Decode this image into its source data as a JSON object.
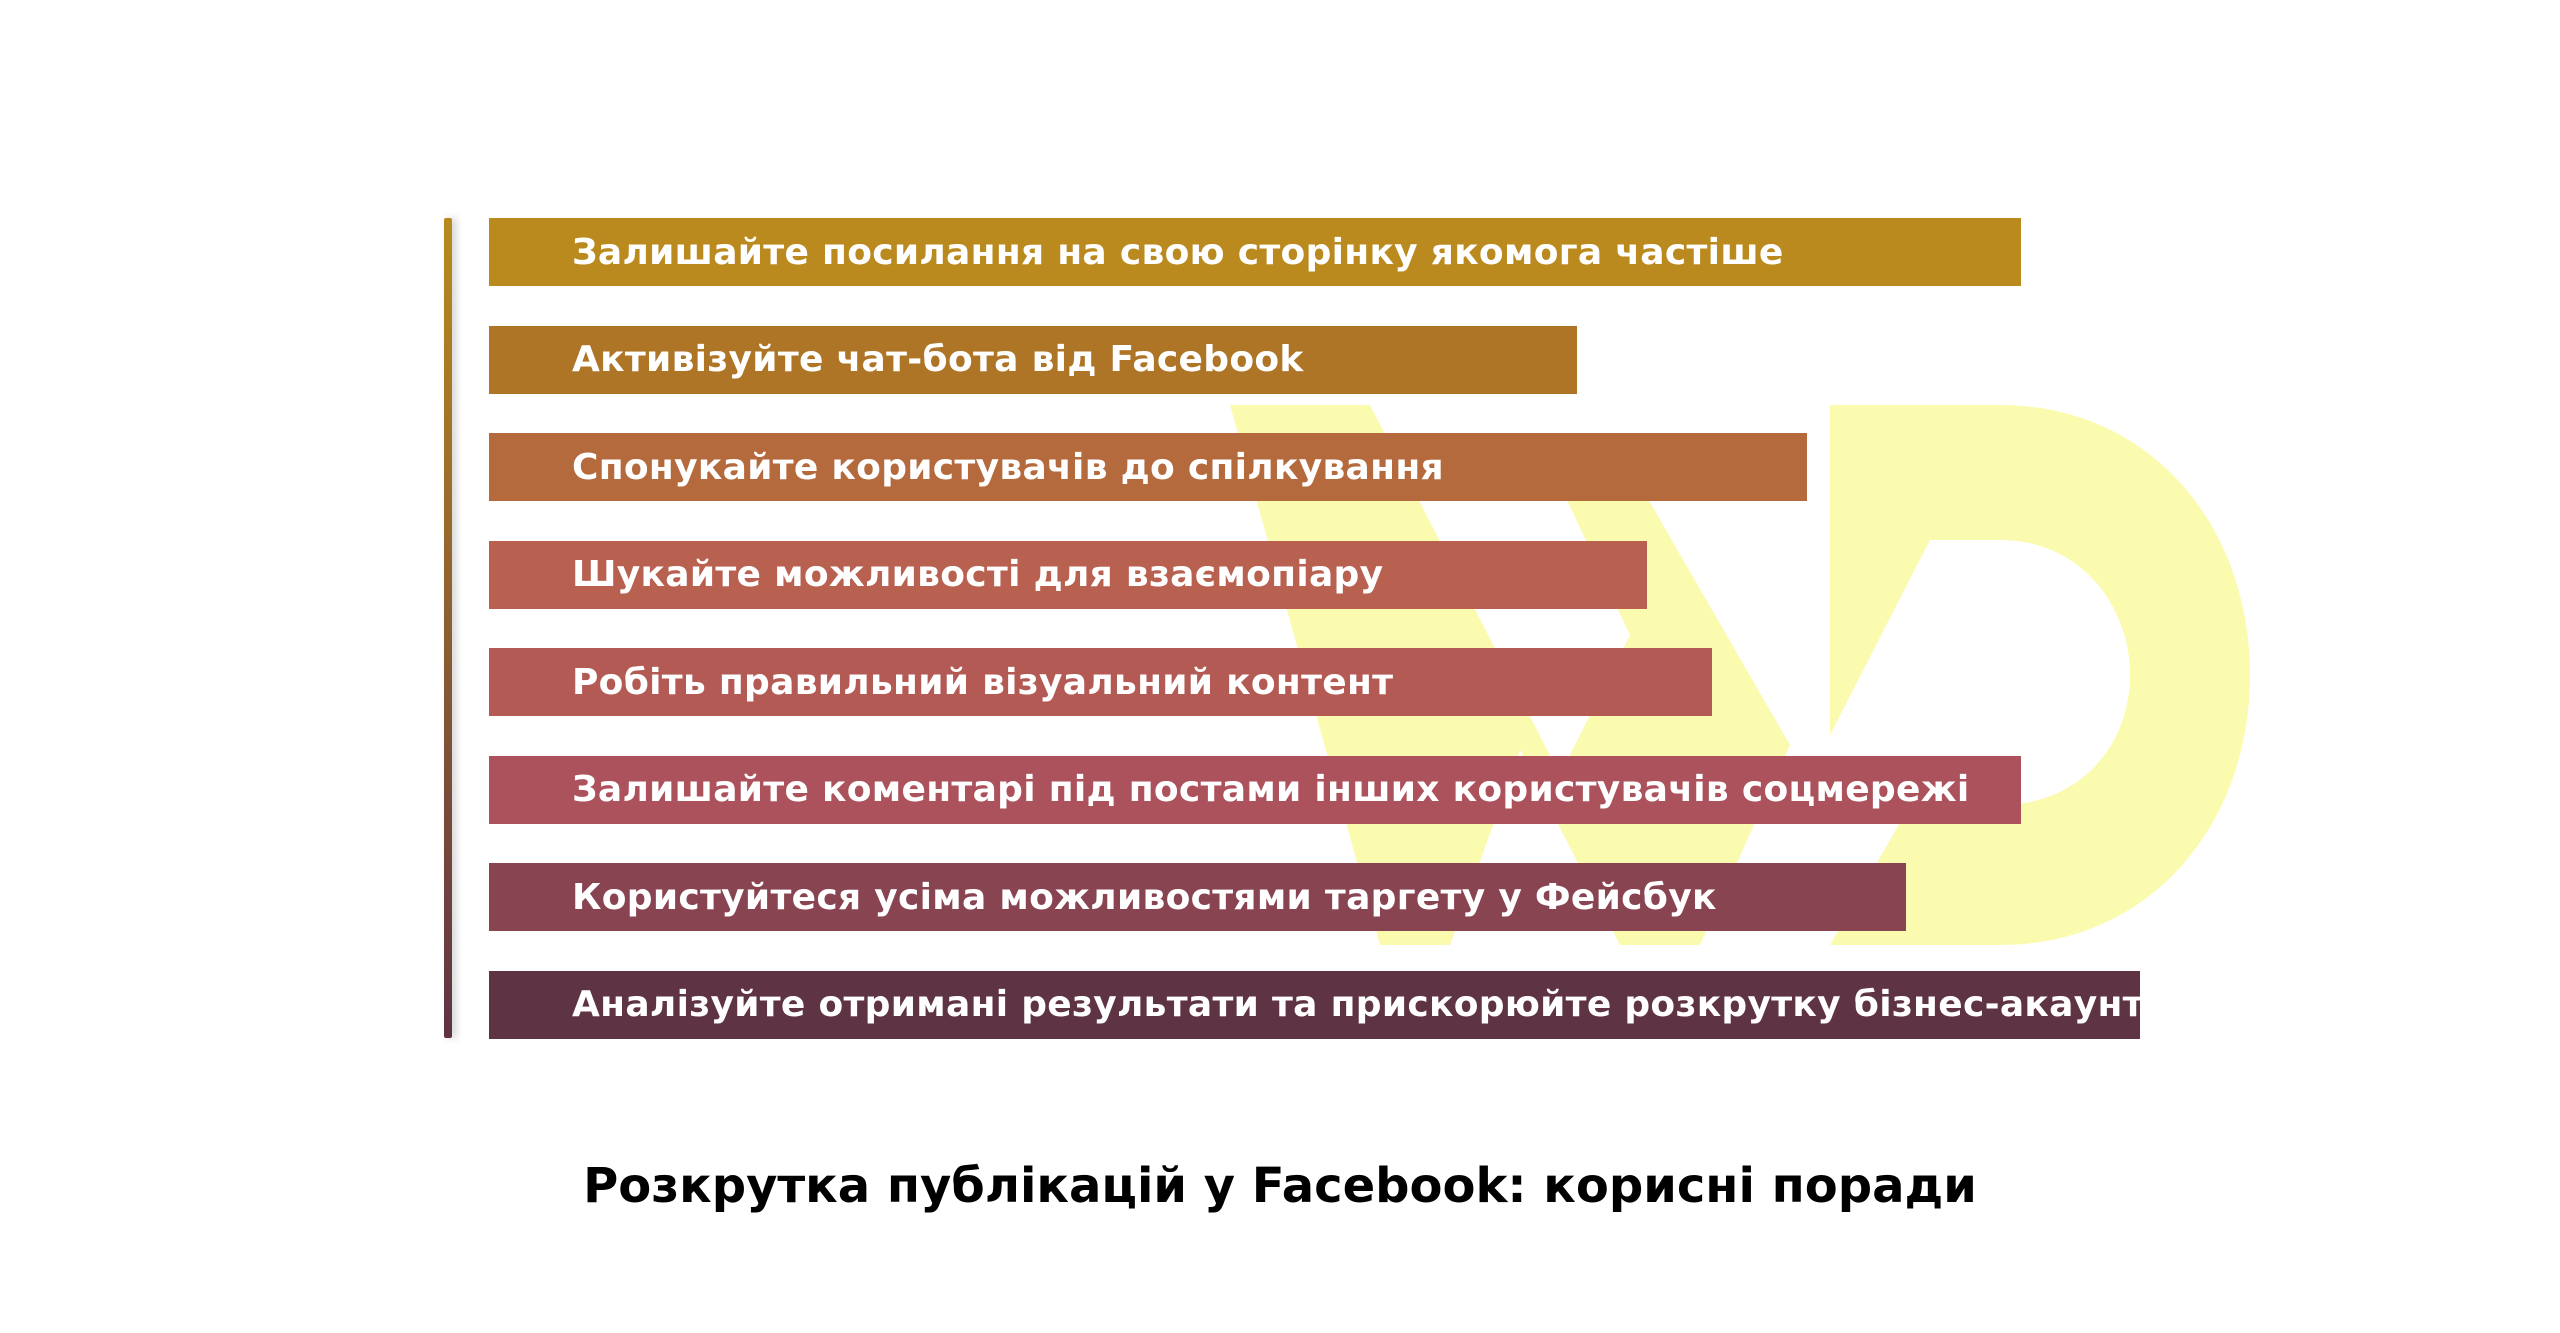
{
  "colors": {
    "timeline_top": "#b98a1f",
    "timeline_bottom": "#5e3344",
    "watermark": "#fbfbb0"
  },
  "tips": [
    {
      "label": "Залишайте посилання на свою сторінку якомога частіше",
      "length_pct": 100,
      "color": "#bb8a1f"
    },
    {
      "label": "Активізуйте чат-бота від Facebook",
      "length_pct": 71,
      "color": "#ae7527"
    },
    {
      "label": "Спонукайте користувачів до спілкування",
      "length_pct": 86,
      "color": "#b46a3c"
    },
    {
      "label": "Шукайте можливості для взаємопіару",
      "length_pct": 75.6,
      "color": "#b96150"
    },
    {
      "label": "Робіть правильний візуальний контент",
      "length_pct": 79.8,
      "color": "#b35a55"
    },
    {
      "label": "Залишайте коментарі під постами інших користувачів соцмережі",
      "length_pct": 100,
      "color": "#ac525c"
    },
    {
      "label": "Користуйтеся усіма можливостями таргету у Фейсбук",
      "length_pct": 92.5,
      "color": "#884450"
    },
    {
      "label": "Аналізуйте отримані результати та прискорюйте розкрутку бізнес-акаунту",
      "length_pct": 107.8,
      "color": "#5e3344"
    }
  ],
  "caption": "Розкрутка публікацій у Facebook: корисні поради"
}
